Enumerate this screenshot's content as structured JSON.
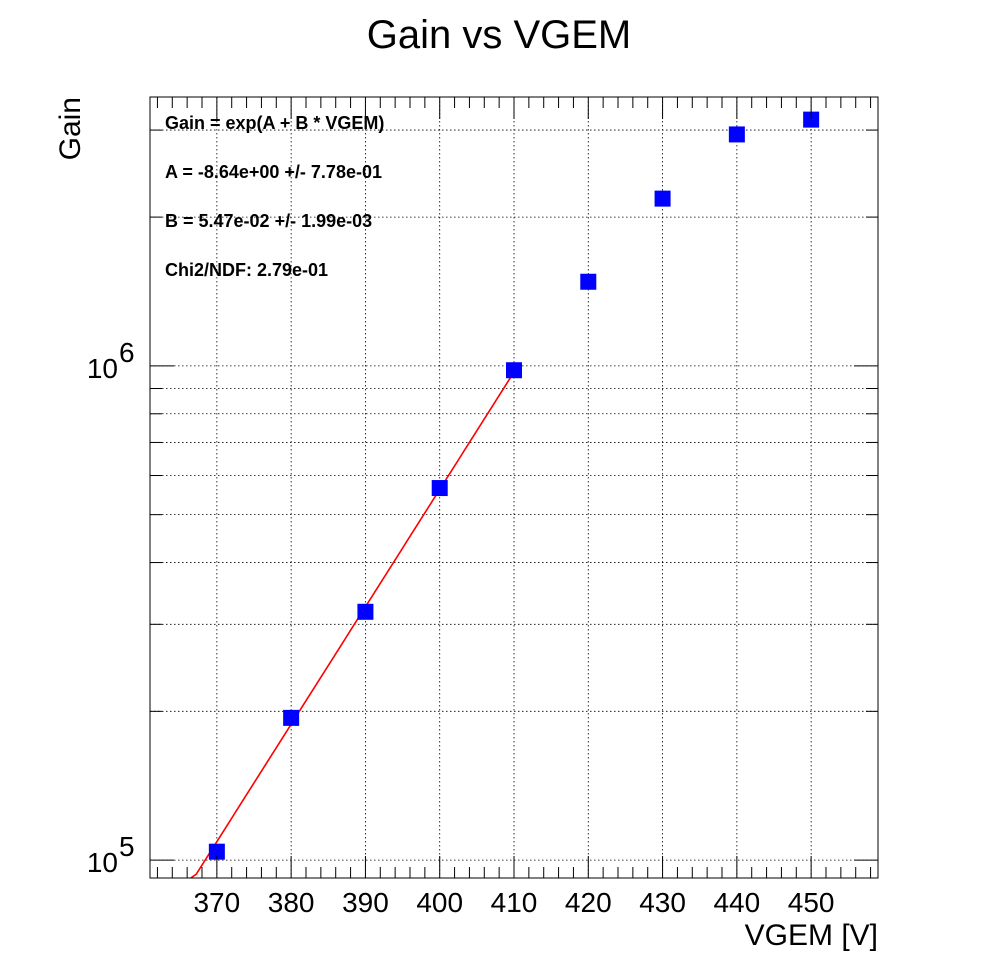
{
  "chart_data": {
    "type": "scatter",
    "title": "Gain vs VGEM",
    "xlabel": "VGEM [V]",
    "ylabel": "Gain",
    "xlim": [
      361,
      459
    ],
    "ylim": [
      92000,
      3500000
    ],
    "yscale": "log",
    "grid": true,
    "x_ticks": [
      370,
      380,
      390,
      400,
      410,
      420,
      430,
      440,
      450
    ],
    "x_tick_labels": [
      "370",
      "380",
      "390",
      "400",
      "410",
      "420",
      "430",
      "440",
      "450"
    ],
    "y_major_ticks": [
      100000,
      1000000
    ],
    "y_tick_labels": [
      {
        "base": "10",
        "exp": "5"
      },
      {
        "base": "10",
        "exp": "6"
      }
    ],
    "series": [
      {
        "marker": "square",
        "color": "#0000ff",
        "x": [
          370,
          380,
          390,
          400,
          410,
          420,
          430,
          440,
          450
        ],
        "y": [
          104000,
          194000,
          318000,
          566000,
          980000,
          1480000,
          2180000,
          2940000,
          3150000
        ]
      }
    ],
    "fit": {
      "color": "#ff0000",
      "function": "exp(A + B * x)",
      "A": -8.64,
      "B": 0.0547,
      "x_range": [
        366.5,
        410
      ]
    },
    "annotations": [
      "Gain = exp(A + B * VGEM)",
      "A = -8.64e+00 +/- 7.78e-01",
      "B = 5.47e-02 +/- 1.99e-03",
      "Chi2/NDF: 2.79e-01"
    ]
  }
}
